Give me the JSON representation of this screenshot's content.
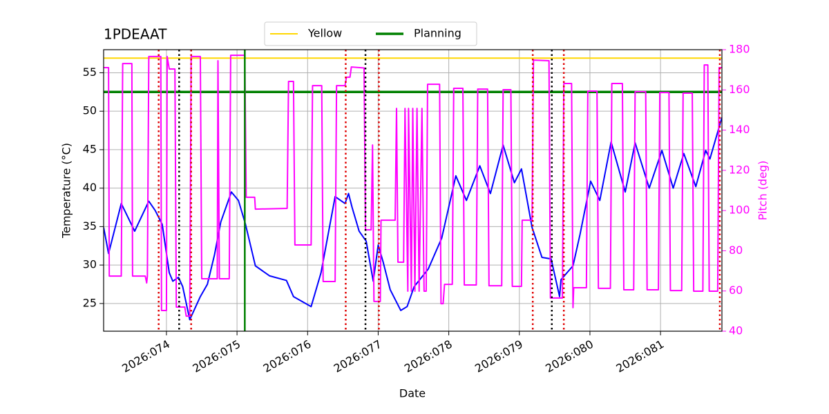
{
  "chart_data": {
    "type": "line",
    "title": "1PDEAAT",
    "x_label": "Date",
    "y_label": "Temperature (°C)",
    "y2_label": "Pitch (deg)",
    "y2_color": "#ff00ff",
    "grid": true,
    "legend": "top",
    "xlim": [
      73.11,
      81.87
    ],
    "xticks": [
      {
        "value": 74,
        "label": "2026:074"
      },
      {
        "value": 75,
        "label": "2026:075"
      },
      {
        "value": 76,
        "label": "2026:076"
      },
      {
        "value": 77,
        "label": "2026:077"
      },
      {
        "value": 78,
        "label": "2026:078"
      },
      {
        "value": 79,
        "label": "2026:079"
      },
      {
        "value": 80,
        "label": "2026:080"
      },
      {
        "value": 81,
        "label": "2026:081"
      }
    ],
    "ylim": [
      21.4,
      58.0
    ],
    "yticks": [
      25,
      30,
      35,
      40,
      45,
      50,
      55
    ],
    "y2lim": [
      40,
      180
    ],
    "y2ticks": [
      40,
      60,
      80,
      100,
      120,
      140,
      160,
      180
    ],
    "hlines": [
      {
        "name": "Yellow",
        "color": "#ffd700",
        "width": 2,
        "y": 56.9
      },
      {
        "name": "Planning",
        "color": "#008000",
        "width": 3.5,
        "y": 52.5
      }
    ],
    "vlines": [
      {
        "x": 73.89,
        "color": "#e00000",
        "style": "dotted"
      },
      {
        "x": 74.35,
        "color": "#e00000",
        "style": "dotted"
      },
      {
        "x": 76.54,
        "color": "#e00000",
        "style": "dotted"
      },
      {
        "x": 77.01,
        "color": "#e00000",
        "style": "dotted"
      },
      {
        "x": 79.19,
        "color": "#e00000",
        "style": "dotted"
      },
      {
        "x": 79.63,
        "color": "#e00000",
        "style": "dotted"
      },
      {
        "x": 81.84,
        "color": "#e00000",
        "style": "dotted"
      },
      {
        "x": 74.18,
        "color": "#000000",
        "style": "dotted"
      },
      {
        "x": 76.82,
        "color": "#000000",
        "style": "dotted"
      },
      {
        "x": 79.46,
        "color": "#000000",
        "style": "dotted"
      },
      {
        "x": 75.11,
        "color": "#008000",
        "style": "solid"
      }
    ],
    "series": [
      {
        "color": "#0000ff",
        "x": [
          73.11,
          73.18,
          73.36,
          73.55,
          73.75,
          73.84,
          73.94,
          74.04,
          74.09,
          74.17,
          74.23,
          74.33,
          74.48,
          74.58,
          74.68,
          74.77,
          74.92,
          75.02,
          75.12,
          75.26,
          75.46,
          75.7,
          75.8,
          76.05,
          76.19,
          76.39,
          76.53,
          76.58,
          76.63,
          76.73,
          76.83,
          76.93,
          77.0,
          77.07,
          77.17,
          77.32,
          77.41,
          77.51,
          77.71,
          77.9,
          78.1,
          78.25,
          78.44,
          78.59,
          78.77,
          78.93,
          79.03,
          79.18,
          79.32,
          79.45,
          79.57,
          79.59,
          79.76,
          79.86,
          80.01,
          80.14,
          80.3,
          80.5,
          80.64,
          80.84,
          81.02,
          81.18,
          81.33,
          81.5,
          81.64,
          81.7,
          81.87
        ],
        "values": [
          34.9,
          31.5,
          38.0,
          34.4,
          38.3,
          37.1,
          35.3,
          29.0,
          27.9,
          28.4,
          27.2,
          22.9,
          25.9,
          27.5,
          31.3,
          35.6,
          39.5,
          38.4,
          35.3,
          29.9,
          28.6,
          28.0,
          25.9,
          24.6,
          29.0,
          38.9,
          38.0,
          39.3,
          37.5,
          34.4,
          33.1,
          27.9,
          32.6,
          30.4,
          26.8,
          24.1,
          24.6,
          27.2,
          29.5,
          33.5,
          41.6,
          38.4,
          42.9,
          39.3,
          45.6,
          40.7,
          42.5,
          34.9,
          31.0,
          30.8,
          25.9,
          28.1,
          29.9,
          34.0,
          40.9,
          38.4,
          46.0,
          39.5,
          45.9,
          40.0,
          44.9,
          40.0,
          44.5,
          40.2,
          44.9,
          43.8,
          49.2
        ]
      },
      {
        "color": "#ff00ff",
        "axis": "y2",
        "x": [
          73.11,
          73.18,
          73.19,
          73.36,
          73.38,
          73.51,
          73.52,
          73.7,
          73.72,
          73.73,
          73.75,
          73.92,
          73.93,
          74.0,
          74.01,
          74.04,
          74.12,
          74.14,
          74.26,
          74.28,
          74.33,
          74.35,
          74.48,
          74.5,
          74.72,
          74.73,
          74.75,
          74.89,
          74.91,
          75.11,
          75.13,
          75.25,
          75.26,
          75.71,
          75.73,
          75.8,
          75.82,
          76.05,
          76.07,
          76.2,
          76.22,
          76.39,
          76.41,
          76.53,
          76.55,
          76.6,
          76.62,
          76.8,
          76.82,
          76.9,
          76.92,
          76.94,
          77.03,
          77.04,
          77.24,
          77.26,
          77.28,
          77.36,
          77.38,
          77.42,
          77.43,
          77.47,
          77.49,
          77.52,
          77.55,
          77.58,
          77.62,
          77.65,
          77.68,
          77.7,
          77.87,
          77.89,
          77.92,
          77.94,
          78.05,
          78.07,
          78.2,
          78.22,
          78.39,
          78.41,
          78.55,
          78.57,
          78.75,
          78.77,
          78.88,
          78.9,
          79.03,
          79.04,
          79.18,
          79.2,
          79.42,
          79.44,
          79.61,
          79.63,
          79.74,
          79.76,
          79.77,
          79.95,
          79.97,
          80.1,
          80.12,
          80.29,
          80.31,
          80.46,
          80.48,
          80.62,
          80.64,
          80.79,
          80.81,
          80.97,
          80.99,
          81.12,
          81.14,
          81.3,
          81.32,
          81.45,
          81.47,
          81.6,
          81.62,
          81.67,
          81.69,
          81.81,
          81.83,
          81.87
        ],
        "values": [
          171.1,
          171.1,
          67.4,
          67.4,
          173.1,
          173.1,
          67.4,
          67.4,
          64.0,
          67.4,
          176.6,
          176.6,
          50.3,
          50.3,
          176.6,
          170.4,
          170.4,
          52.0,
          52.0,
          47.5,
          47.5,
          176.6,
          176.6,
          66.1,
          66.1,
          174.5,
          66.1,
          66.1,
          177.2,
          177.2,
          106.6,
          106.6,
          100.7,
          101.1,
          164.2,
          164.2,
          82.9,
          82.9,
          162.1,
          162.1,
          64.7,
          64.7,
          162.1,
          162.1,
          166.3,
          166.3,
          171.4,
          170.9,
          90.4,
          90.4,
          132.6,
          54.8,
          54.8,
          95.2,
          95.2,
          150.8,
          74.3,
          74.3,
          150.8,
          59.9,
          150.8,
          59.9,
          150.8,
          59.9,
          150.8,
          59.9,
          150.8,
          59.9,
          59.9,
          162.8,
          162.8,
          53.7,
          53.7,
          63.3,
          63.3,
          160.8,
          160.8,
          63.0,
          63.0,
          160.4,
          160.4,
          62.6,
          62.6,
          160.1,
          160.1,
          62.3,
          62.3,
          95.2,
          95.2,
          174.8,
          174.5,
          56.5,
          56.5,
          163.2,
          163.2,
          51.7,
          61.6,
          61.6,
          159.4,
          159.4,
          61.3,
          61.3,
          163.2,
          163.2,
          60.6,
          60.6,
          159.1,
          159.1,
          60.6,
          60.6,
          158.7,
          158.7,
          60.2,
          60.2,
          158.4,
          158.4,
          59.9,
          59.9,
          172.4,
          172.4,
          59.9,
          59.9,
          171.1,
          171.1
        ]
      }
    ]
  }
}
